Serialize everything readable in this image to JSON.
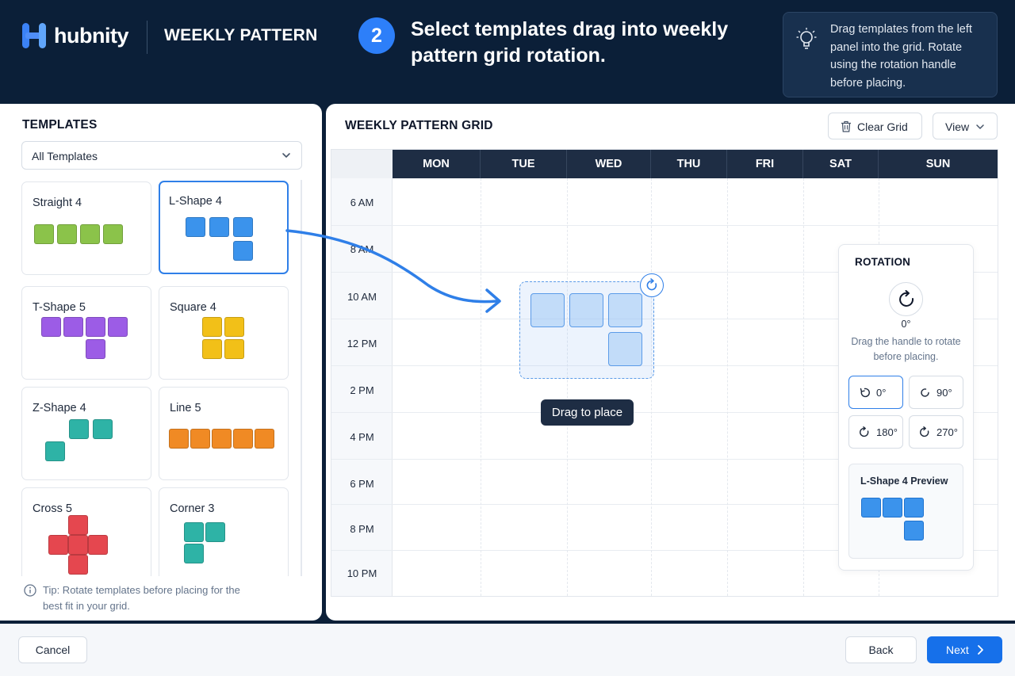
{
  "header": {
    "logo_text": "hubnity",
    "title": "WEEKLY PATTERN",
    "step_number": "2",
    "step_text": "Select templates drag into weekly pattern grid rotation.",
    "hint": "Drag templates from the left panel into the grid. Rotate using the rotation handle before placing."
  },
  "templates": {
    "title": "TEMPLATES",
    "filter": "All Templates",
    "items": [
      {
        "label": "Straight 4",
        "color": "#8bc34a"
      },
      {
        "label": "L-Shape 4",
        "color": "#3b93ec",
        "selected": true
      },
      {
        "label": "T-Shape 5",
        "color": "#9c5ce6"
      },
      {
        "label": "Square 4",
        "color": "#f2c018"
      },
      {
        "label": "Z-Shape 4",
        "color": "#2eb3a6"
      },
      {
        "label": "Line 5",
        "color": "#f08a24"
      },
      {
        "label": "Cross 5",
        "color": "#e5474f"
      },
      {
        "label": "Corner 3",
        "color": "#2eb3a6"
      }
    ],
    "tip": "Tip: Rotate templates before placing for the best fit in your grid."
  },
  "grid": {
    "title": "WEEKLY PATTERN GRID",
    "clear_label": "Clear Grid",
    "view_label": "View",
    "days": [
      "MON",
      "TUE",
      "WED",
      "THU",
      "FRI",
      "SAT",
      "SUN"
    ],
    "times": [
      "6 AM",
      "8 AM",
      "10 AM",
      "12 PM",
      "2 PM",
      "4 PM",
      "6 PM",
      "8 PM",
      "10 PM"
    ],
    "drag_label": "Drag to place"
  },
  "rotation": {
    "title": "ROTATION",
    "angle": "0°",
    "desc": "Drag the handle to rotate before placing.",
    "options": [
      "0°",
      "90°",
      "180°",
      "270°"
    ],
    "preview_title": "L-Shape 4 Preview"
  },
  "footer": {
    "cancel": "Cancel",
    "back": "Back",
    "next": "Next"
  },
  "colors": {
    "accent": "#1670ea",
    "header_bg": "#0b1f38",
    "day_header": "#1e2d44"
  }
}
